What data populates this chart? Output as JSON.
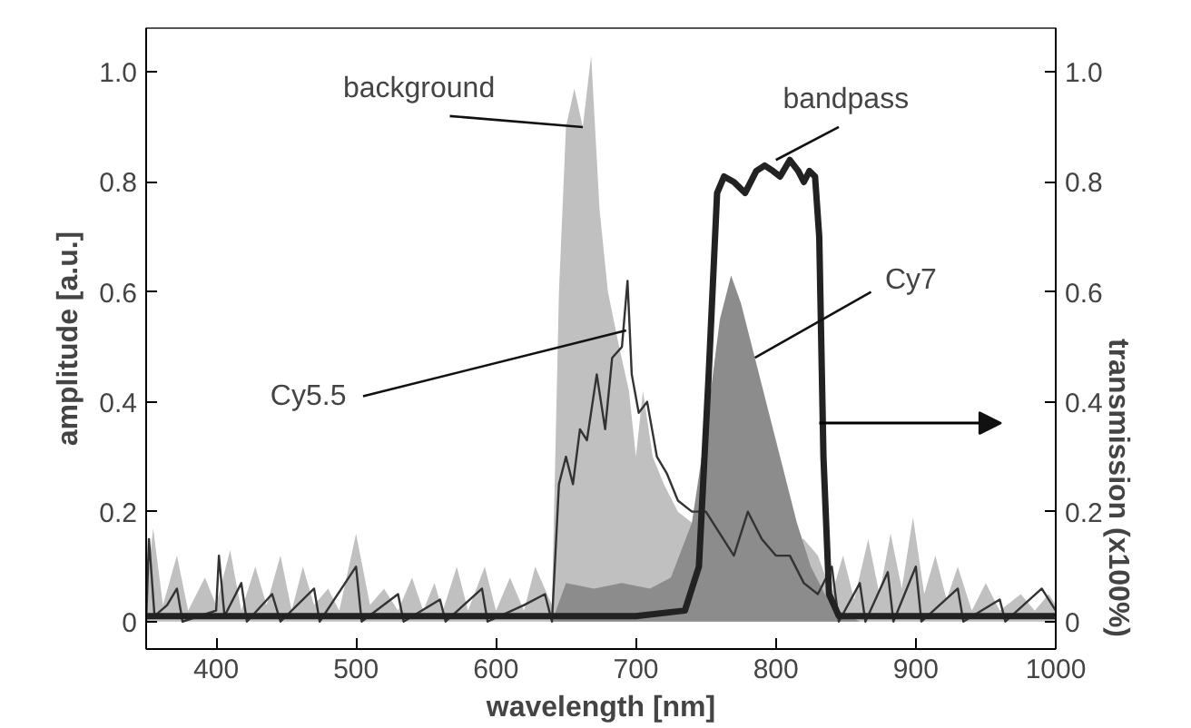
{
  "chart_data": {
    "type": "line",
    "xlabel": "wavelength [nm]",
    "ylabel": "amplitude [a.u.]",
    "y2label": "transmission (x100%)",
    "xlim": [
      350,
      1000
    ],
    "xticks": [
      400,
      500,
      600,
      700,
      800,
      900,
      1000
    ],
    "ylim": [
      -0.05,
      1.08
    ],
    "yticks": [
      0,
      0.2,
      0.4,
      0.6,
      0.8,
      {
        "value": 1.0,
        "label": "1.0"
      }
    ],
    "y2lim": [
      -0.05,
      1.08
    ],
    "y2ticks": [
      0,
      0.2,
      0.4,
      0.6,
      0.8,
      {
        "value": 1.0,
        "label": "1.0"
      }
    ],
    "grid": false,
    "series": [
      {
        "type": "area",
        "color": "#c0c0c0",
        "x": [
          350,
          355,
          362,
          372,
          380,
          392,
          400,
          410,
          418,
          428,
          436,
          446,
          454,
          462,
          470,
          480,
          488,
          500,
          510,
          520,
          530,
          540,
          548,
          556,
          562,
          572,
          580,
          592,
          600,
          610,
          620,
          628,
          640,
          645,
          650,
          656,
          662,
          668,
          674,
          680,
          688,
          695,
          700,
          705,
          712,
          720,
          730,
          740,
          750,
          770,
          790,
          810,
          820,
          830,
          840,
          848,
          856,
          866,
          874,
          882,
          890,
          898,
          906,
          914,
          922,
          930,
          940,
          950,
          960,
          975,
          985,
          995,
          1000
        ],
        "values": [
          0.05,
          0.17,
          0.03,
          0.12,
          0.02,
          0.08,
          0.03,
          0.13,
          0.02,
          0.1,
          0.03,
          0.12,
          0.02,
          0.1,
          0.03,
          0.06,
          0.02,
          0.16,
          0.03,
          0.06,
          0.02,
          0.08,
          0.02,
          0.07,
          0.02,
          0.1,
          0.02,
          0.1,
          0.02,
          0.08,
          0.02,
          0.1,
          0.03,
          0.6,
          0.9,
          0.97,
          0.9,
          1.03,
          0.75,
          0.6,
          0.5,
          0.42,
          0.3,
          0.42,
          0.3,
          0.25,
          0.2,
          0.18,
          null,
          null,
          null,
          null,
          0.15,
          0.12,
          0.05,
          0.12,
          0.04,
          0.15,
          0.05,
          0.16,
          0.06,
          0.19,
          0.05,
          0.12,
          0.04,
          0.1,
          0.02,
          0.07,
          0.02,
          0.05,
          0.02,
          0.05,
          0.03
        ]
      },
      {
        "type": "area",
        "color": "#8c8c8c",
        "x": [
          640,
          650,
          670,
          690,
          710,
          725,
          740,
          750,
          760,
          768,
          775,
          785,
          795,
          805,
          815,
          825,
          835,
          845,
          860
        ],
        "values": [
          0.0,
          0.07,
          0.06,
          0.07,
          0.06,
          0.08,
          0.18,
          0.35,
          0.55,
          0.63,
          0.58,
          0.48,
          0.38,
          0.28,
          0.18,
          0.1,
          0.05,
          0.02,
          0.0
        ]
      },
      {
        "color": "#333333",
        "x": [
          350,
          352,
          356,
          365,
          372,
          376,
          400,
          402,
          406,
          418,
          422,
          440,
          446,
          470,
          474,
          500,
          504,
          530,
          534,
          560,
          564,
          590,
          594,
          620,
          635,
          640,
          645,
          650,
          655,
          660,
          665,
          672,
          678,
          683,
          690,
          694,
          697,
          702,
          708,
          715,
          722,
          730,
          740,
          750,
          760,
          770,
          780,
          790,
          800,
          810,
          820,
          830,
          840,
          845,
          860,
          864,
          880,
          884,
          900,
          904,
          930,
          934,
          960,
          964,
          990,
          1000
        ],
        "values": [
          0.0,
          0.15,
          0.01,
          0.03,
          0.06,
          0.0,
          0.02,
          0.12,
          0.01,
          0.07,
          0.0,
          0.05,
          0.0,
          0.06,
          0.0,
          0.1,
          0.0,
          0.05,
          0.0,
          0.04,
          0.0,
          0.06,
          0.0,
          0.03,
          0.05,
          0.0,
          0.25,
          0.3,
          0.25,
          0.35,
          0.33,
          0.45,
          0.35,
          0.48,
          0.5,
          0.62,
          0.45,
          0.38,
          0.4,
          0.3,
          0.27,
          0.22,
          0.2,
          0.2,
          0.16,
          0.12,
          0.2,
          0.15,
          0.12,
          0.12,
          0.07,
          0.05,
          0.1,
          0.0,
          0.07,
          0.0,
          0.09,
          0.0,
          0.1,
          0.0,
          0.06,
          0.0,
          0.04,
          0.0,
          0.06,
          0.02
        ]
      },
      {
        "axis": "y2",
        "color": "#222222",
        "x": [
          350,
          700,
          735,
          745,
          752,
          758,
          763,
          770,
          778,
          786,
          792,
          798,
          803,
          810,
          816,
          820,
          824,
          828,
          831,
          834,
          838,
          845,
          1000
        ],
        "values": [
          0.01,
          0.01,
          0.02,
          0.1,
          0.45,
          0.78,
          0.81,
          0.8,
          0.78,
          0.82,
          0.83,
          0.82,
          0.81,
          0.84,
          0.82,
          0.8,
          0.82,
          0.81,
          0.7,
          0.3,
          0.05,
          0.01,
          0.01
        ]
      }
    ],
    "annotations": [
      {
        "text": "background",
        "x": 662,
        "y": 0.9
      },
      {
        "text": "Cy5.5",
        "x": 693,
        "y": 0.53
      },
      {
        "text": "bandpass",
        "x": 800,
        "y": 0.84
      },
      {
        "text": "Cy7",
        "x": 785,
        "y": 0.48
      }
    ]
  }
}
